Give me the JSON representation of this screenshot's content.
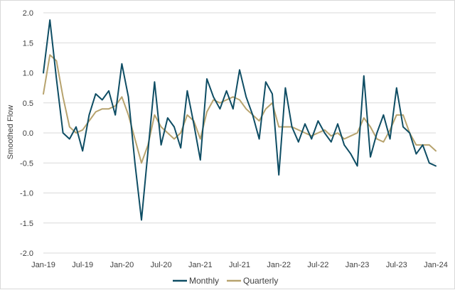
{
  "chart_data": {
    "type": "line",
    "title": "",
    "xlabel": "",
    "ylabel": "Smoothed Flow",
    "ylim": [
      -2.0,
      2.0
    ],
    "y_ticks": [
      "2.0",
      "1.5",
      "1.0",
      "0.5",
      "0.0",
      "-0.5",
      "-1.0",
      "-1.5",
      "-2.0"
    ],
    "y_tick_values": [
      2.0,
      1.5,
      1.0,
      0.5,
      0.0,
      -0.5,
      -1.0,
      -1.5,
      -2.0
    ],
    "x_ticks": [
      "Jan-19",
      "Jul-19",
      "Jan-20",
      "Jul-20",
      "Jan-21",
      "Jul-21",
      "Jan-22",
      "Jul-22",
      "Jan-23",
      "Jul-23",
      "Jan-24"
    ],
    "x_tick_values": [
      "2019-01",
      "2019-07",
      "2020-01",
      "2020-07",
      "2021-01",
      "2021-07",
      "2022-01",
      "2022-07",
      "2023-01",
      "2023-07",
      "2024-01"
    ],
    "xlim": [
      "2019-01",
      "2024-01"
    ],
    "grid": "horizontal",
    "legend_position": "bottom",
    "series": [
      {
        "name": "Monthly",
        "color": "#0e4d64",
        "x": [
          "2019-01",
          "2019-02",
          "2019-03",
          "2019-04",
          "2019-05",
          "2019-06",
          "2019-07",
          "2019-08",
          "2019-09",
          "2019-10",
          "2019-11",
          "2019-12",
          "2020-01",
          "2020-02",
          "2020-03",
          "2020-04",
          "2020-05",
          "2020-06",
          "2020-07",
          "2020-08",
          "2020-09",
          "2020-10",
          "2020-11",
          "2020-12",
          "2021-01",
          "2021-02",
          "2021-03",
          "2021-04",
          "2021-05",
          "2021-06",
          "2021-07",
          "2021-08",
          "2021-09",
          "2021-10",
          "2021-11",
          "2021-12",
          "2022-01",
          "2022-02",
          "2022-03",
          "2022-04",
          "2022-05",
          "2022-06",
          "2022-07",
          "2022-08",
          "2022-09",
          "2022-10",
          "2022-11",
          "2022-12",
          "2023-01",
          "2023-02",
          "2023-03",
          "2023-04",
          "2023-05",
          "2023-06",
          "2023-07",
          "2023-08",
          "2023-09",
          "2023-10",
          "2023-11",
          "2023-12",
          "2024-01"
        ],
        "values": [
          1.0,
          1.88,
          0.9,
          0.0,
          -0.1,
          0.1,
          -0.3,
          0.3,
          0.65,
          0.55,
          0.7,
          0.3,
          1.15,
          0.6,
          -0.5,
          -1.45,
          -0.3,
          0.85,
          -0.2,
          0.25,
          0.1,
          -0.25,
          0.7,
          0.15,
          -0.45,
          0.9,
          0.6,
          0.4,
          0.7,
          0.4,
          1.05,
          0.6,
          0.3,
          -0.1,
          0.85,
          0.65,
          -0.7,
          0.75,
          0.1,
          -0.15,
          0.15,
          -0.1,
          0.2,
          0.0,
          -0.15,
          0.15,
          -0.2,
          -0.35,
          -0.55,
          0.95,
          -0.4,
          0.0,
          0.3,
          -0.1,
          0.75,
          0.1,
          0.0,
          -0.35,
          -0.2,
          -0.5,
          -0.55
        ]
      },
      {
        "name": "Quarterly",
        "color": "#b7a36e",
        "x": [
          "2019-01",
          "2019-02",
          "2019-03",
          "2019-04",
          "2019-05",
          "2019-06",
          "2019-07",
          "2019-08",
          "2019-09",
          "2019-10",
          "2019-11",
          "2019-12",
          "2020-01",
          "2020-02",
          "2020-03",
          "2020-04",
          "2020-05",
          "2020-06",
          "2020-07",
          "2020-08",
          "2020-09",
          "2020-10",
          "2020-11",
          "2020-12",
          "2021-01",
          "2021-02",
          "2021-03",
          "2021-04",
          "2021-05",
          "2021-06",
          "2021-07",
          "2021-08",
          "2021-09",
          "2021-10",
          "2021-11",
          "2021-12",
          "2022-01",
          "2022-02",
          "2022-03",
          "2022-04",
          "2022-05",
          "2022-06",
          "2022-07",
          "2022-08",
          "2022-09",
          "2022-10",
          "2022-11",
          "2022-12",
          "2023-01",
          "2023-02",
          "2023-03",
          "2023-04",
          "2023-05",
          "2023-06",
          "2023-07",
          "2023-08",
          "2023-09",
          "2023-10",
          "2023-11",
          "2023-12",
          "2024-01"
        ],
        "values": [
          0.65,
          1.3,
          1.2,
          0.6,
          0.1,
          0.0,
          0.05,
          0.2,
          0.35,
          0.4,
          0.4,
          0.45,
          0.6,
          0.3,
          -0.1,
          -0.5,
          -0.2,
          0.3,
          0.1,
          0.0,
          -0.1,
          0.0,
          0.3,
          0.2,
          -0.1,
          0.35,
          0.55,
          0.5,
          0.55,
          0.6,
          0.55,
          0.4,
          0.3,
          0.2,
          0.4,
          0.5,
          0.1,
          0.1,
          0.1,
          0.05,
          0.0,
          -0.05,
          0.0,
          0.05,
          -0.05,
          0.0,
          -0.1,
          -0.05,
          0.0,
          0.25,
          0.1,
          -0.1,
          -0.15,
          0.05,
          0.3,
          0.3,
          0.0,
          -0.2,
          -0.2,
          -0.2,
          -0.3
        ]
      }
    ]
  }
}
